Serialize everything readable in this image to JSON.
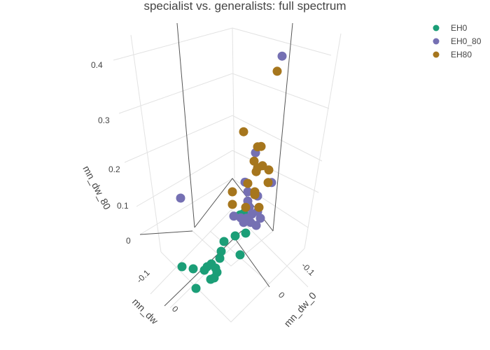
{
  "chart_data": {
    "type": "scatter3d",
    "title": "specialist vs. generalists: full spectrum",
    "xlabel": "mn_dw_0",
    "ylabel": "mn_dw",
    "zlabel": "mn_dw_80",
    "x_ticks": [
      "-0.1",
      "0"
    ],
    "y_ticks": [
      "-0.1",
      "0"
    ],
    "z_ticks": [
      "0",
      "0.1",
      "0.2",
      "0.3",
      "0.4"
    ],
    "legend_position": "top-right",
    "series": [
      {
        "name": "EH0",
        "color": "#1b9e77",
        "points": [
          [
            0.0605,
            -0.0095,
            0
          ],
          [
            0.054,
            0,
            0
          ],
          [
            0.047,
            0.009,
            0
          ],
          [
            0.0425,
            0.0085,
            0
          ],
          [
            0.0375,
            0.0095,
            0
          ],
          [
            0.0375,
            0.0155,
            0
          ],
          [
            0.0395,
            0.0195,
            0
          ],
          [
            0.0455,
            0.0215,
            0
          ],
          [
            0.049,
            0.02,
            0
          ],
          [
            0.066,
            0.016,
            0
          ],
          [
            0.0275,
            0.0115,
            0
          ],
          [
            0.0215,
            0.0075,
            0
          ],
          [
            0.0125,
            0.0025,
            0
          ],
          [
            0.0005,
            0.0065,
            0
          ],
          [
            -0.009,
            0.012,
            0
          ],
          [
            0.0105,
            0.0235,
            0
          ],
          [
            -0.018,
            -0.005,
            0
          ],
          [
            -0.0215,
            -0.0035,
            0
          ]
        ]
      },
      {
        "name": "EH0_80",
        "color": "#7570b3",
        "points": [
          [
            -0.0315,
            0.0415,
            0.433
          ],
          [
            0.041,
            -0.031,
            0.095
          ],
          [
            -0.0125,
            0.0225,
            0.203
          ],
          [
            -0.005,
            0.015,
            0.133
          ],
          [
            -0.024,
            0.034,
            0.132
          ],
          [
            -0.007,
            0.017,
            0.11
          ],
          [
            -0.014,
            0.024,
            0.1
          ],
          [
            -0.007,
            0.017,
            0.088
          ],
          [
            -0.008,
            0.018,
            0.073
          ],
          [
            0.003,
            0.007,
            0.052
          ],
          [
            -0.002,
            0.012,
            0.048
          ],
          [
            -0.006,
            0.016,
            0.047
          ],
          [
            -0.01,
            0.02,
            0.057
          ],
          [
            -0.014,
            0.024,
            0.063
          ],
          [
            -0.016,
            0.026,
            0.047
          ],
          [
            -0.013,
            0.023,
            0.03
          ],
          [
            -0.009,
            0.019,
            0.037
          ],
          [
            -0.004,
            0.014,
            0.037
          ]
        ]
      },
      {
        "name": "EH80",
        "color": "#a6761d",
        "points": [
          [
            -0.028,
            0.038,
            0.397
          ],
          [
            -0.004,
            0.014,
            0.253
          ],
          [
            -0.014,
            0.024,
            0.217
          ],
          [
            -0.0165,
            0.0265,
            0.218
          ],
          [
            -0.0115,
            0.0215,
            0.183
          ],
          [
            -0.0175,
            0.0275,
            0.172
          ],
          [
            -0.013,
            0.023,
            0.158
          ],
          [
            -0.022,
            0.032,
            0.162
          ],
          [
            -0.014,
            0.024,
            0.167
          ],
          [
            -0.007,
            0.017,
            0.13
          ],
          [
            -0.0215,
            0.0315,
            0.132
          ],
          [
            0.004,
            0.006,
            0.11
          ],
          [
            -0.012,
            0.022,
            0.11
          ],
          [
            0.004,
            0.006,
            0.08
          ],
          [
            -0.0055,
            0.0155,
            0.073
          ],
          [
            -0.015,
            0.025,
            0.073
          ],
          [
            -0.012,
            0.022,
            0.103
          ]
        ]
      }
    ]
  }
}
